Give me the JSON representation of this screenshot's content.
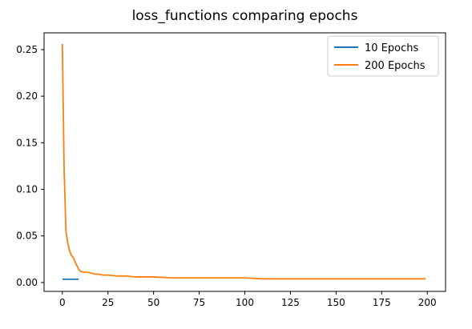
{
  "chart_data": {
    "type": "line",
    "title": "loss_functions comparing epochs",
    "xlabel": "",
    "ylabel": "",
    "xlim": [
      -10,
      210
    ],
    "ylim": [
      -0.0095,
      0.268
    ],
    "xticks": [
      0,
      25,
      50,
      75,
      100,
      125,
      150,
      175,
      200
    ],
    "yticks": [
      0.0,
      0.05,
      0.1,
      0.15,
      0.2,
      0.25
    ],
    "ytick_labels": [
      "0.00",
      "0.05",
      "0.10",
      "0.15",
      "0.20",
      "0.25"
    ],
    "grid": false,
    "legend_position": "upper right",
    "series": [
      {
        "name": "10 Epochs",
        "color": "#1f77b4",
        "x": [
          0,
          1,
          2,
          3,
          4,
          5,
          6,
          7,
          8,
          9
        ],
        "y": [
          0.0035,
          0.0035,
          0.0035,
          0.0035,
          0.0035,
          0.0035,
          0.0035,
          0.0035,
          0.0035,
          0.0035
        ]
      },
      {
        "name": "200 Epochs",
        "color": "#ff7f0e",
        "x": [
          0,
          1,
          2,
          3,
          4,
          5,
          6,
          7,
          8,
          9,
          10,
          12,
          14,
          16,
          18,
          20,
          22,
          25,
          30,
          35,
          40,
          45,
          50,
          60,
          70,
          80,
          90,
          100,
          110,
          120,
          130,
          140,
          150,
          160,
          170,
          180,
          190,
          199
        ],
        "y": [
          0.256,
          0.12,
          0.055,
          0.042,
          0.034,
          0.029,
          0.027,
          0.022,
          0.018,
          0.014,
          0.012,
          0.011,
          0.011,
          0.01,
          0.009,
          0.009,
          0.008,
          0.008,
          0.007,
          0.007,
          0.006,
          0.006,
          0.006,
          0.005,
          0.005,
          0.005,
          0.005,
          0.005,
          0.004,
          0.004,
          0.004,
          0.004,
          0.004,
          0.004,
          0.004,
          0.004,
          0.004,
          0.004
        ]
      }
    ]
  }
}
